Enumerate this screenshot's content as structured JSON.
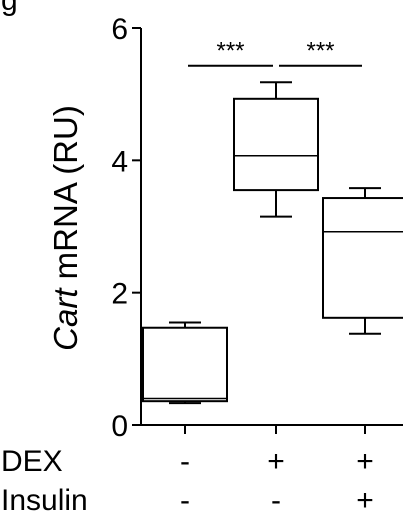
{
  "figure": {
    "corner_label": "g"
  },
  "chart_data": {
    "type": "box",
    "ylabel_italic": "Cart",
    "ylabel_rest": " mRNA (RU)",
    "xlabel": "",
    "ylim": [
      0,
      6
    ],
    "yticks": [
      0,
      2,
      4,
      6
    ],
    "grid": false,
    "legend": "none",
    "groups": [
      {
        "name": "1",
        "min": 0.33,
        "q1": 0.36,
        "median": 0.4,
        "q3": 1.47,
        "max": 1.55
      },
      {
        "name": "2",
        "min": 3.15,
        "q1": 3.55,
        "median": 4.07,
        "q3": 4.93,
        "max": 5.18
      },
      {
        "name": "3",
        "min": 1.38,
        "q1": 1.62,
        "median": 2.92,
        "q3": 3.43,
        "max": 3.58
      }
    ],
    "significance": [
      {
        "from": 1,
        "to": 2,
        "label": "***",
        "y": 5.43
      },
      {
        "from": 2,
        "to": 3,
        "label": "***",
        "y": 5.43
      }
    ],
    "conditions": [
      {
        "label": "DEX",
        "values": [
          "-",
          "+",
          "+"
        ]
      },
      {
        "label": "Insulin",
        "values": [
          "-",
          "-",
          "+"
        ]
      }
    ]
  }
}
